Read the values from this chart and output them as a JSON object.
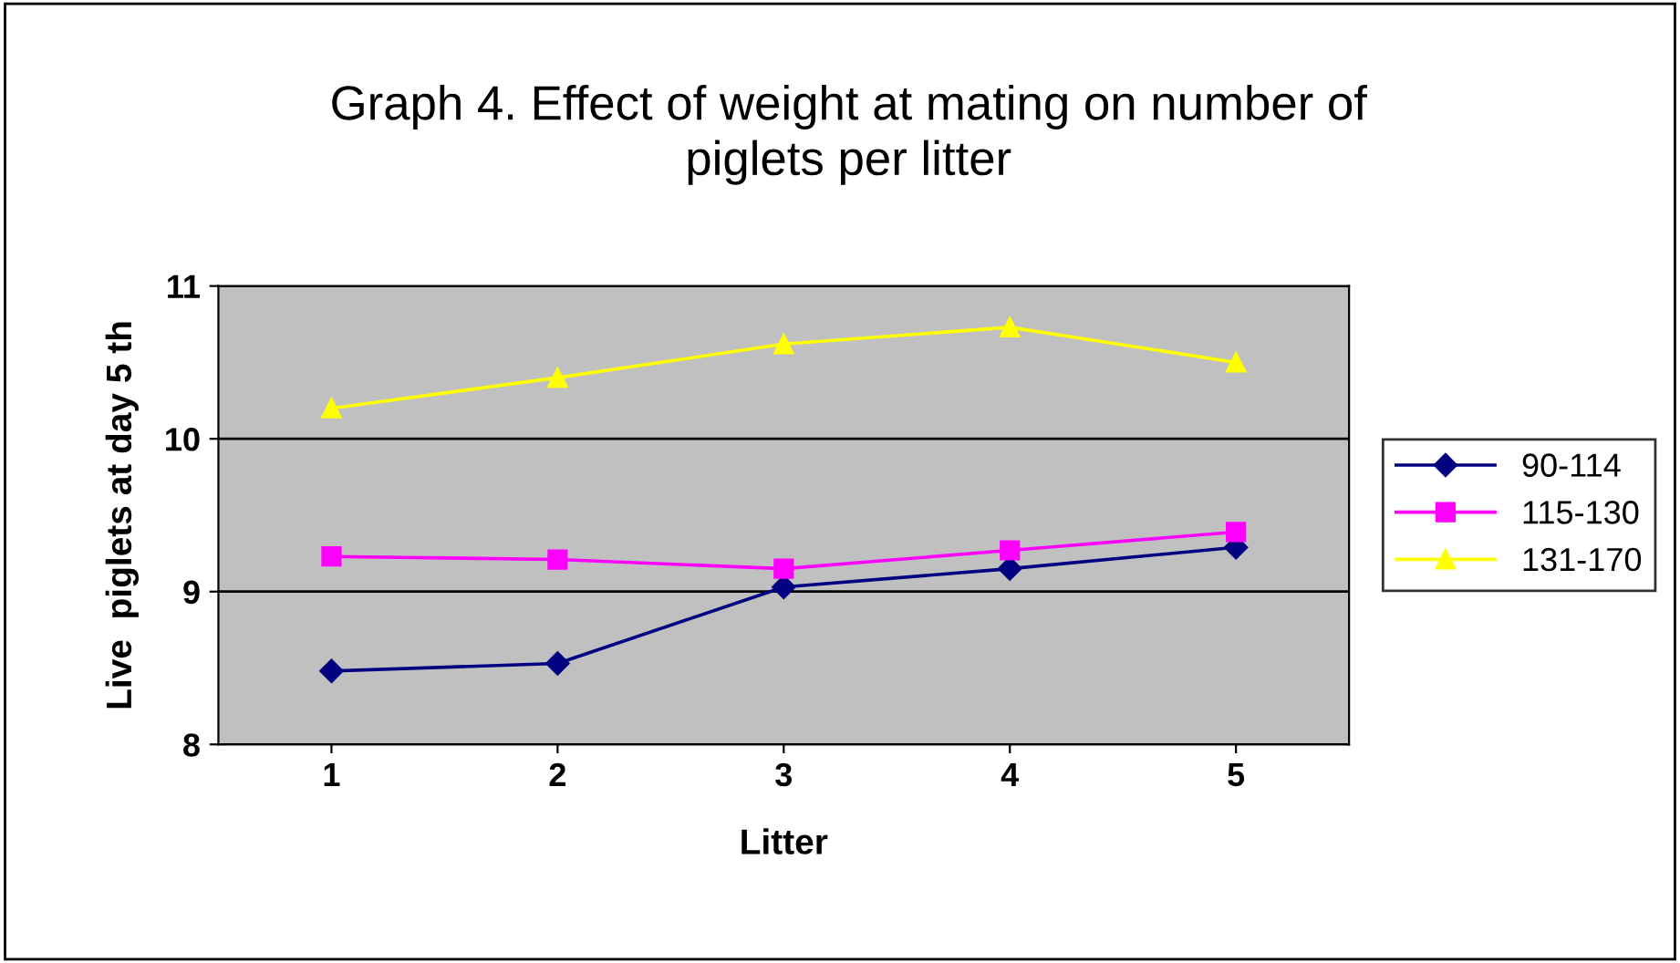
{
  "chart_data": {
    "type": "line",
    "title": "Graph 4. Effect of weight at mating on number of\npiglets per litter",
    "xlabel": "Litter",
    "ylabel": "Live  piglets at day 5 th",
    "categories": [
      "1",
      "2",
      "3",
      "4",
      "5"
    ],
    "series": [
      {
        "name": "90-114",
        "color": "#000080",
        "marker": "diamond",
        "values": [
          8.48,
          8.53,
          9.03,
          9.15,
          9.29
        ]
      },
      {
        "name": "115-130",
        "color": "#ff00ff",
        "marker": "square",
        "values": [
          9.23,
          9.21,
          9.15,
          9.27,
          9.39
        ]
      },
      {
        "name": "131-170",
        "color": "#ffff00",
        "marker": "triangle",
        "values": [
          10.2,
          10.4,
          10.62,
          10.73,
          10.5
        ]
      }
    ],
    "ylim": [
      8,
      11
    ],
    "yticks": [
      8,
      9,
      10,
      11
    ],
    "grid": "y",
    "legend": "right",
    "line_style": "solid"
  }
}
